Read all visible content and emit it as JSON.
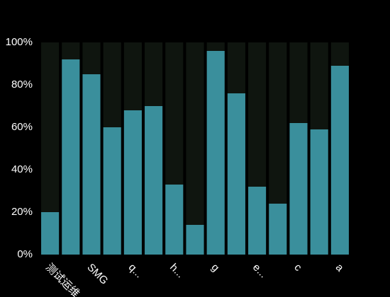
{
  "chart_data": {
    "type": "bar",
    "categories": [
      "测试运维",
      null,
      "SMG",
      null,
      "q...",
      null,
      "h...",
      null,
      "g",
      null,
      "e...",
      null,
      "c",
      null,
      "a"
    ],
    "values": [
      20,
      92,
      85,
      60,
      68,
      70,
      33,
      14,
      96,
      76,
      32,
      24,
      62,
      59,
      89
    ],
    "color": "#3a8f9c",
    "ylim": [
      0,
      100
    ],
    "yticks": [
      {
        "value": 0,
        "label": "0%"
      },
      {
        "value": 20,
        "label": "20%"
      },
      {
        "value": 40,
        "label": "40%"
      },
      {
        "value": 60,
        "label": "60%"
      },
      {
        "value": 80,
        "label": "80%"
      },
      {
        "value": 100,
        "label": "100%"
      }
    ]
  }
}
